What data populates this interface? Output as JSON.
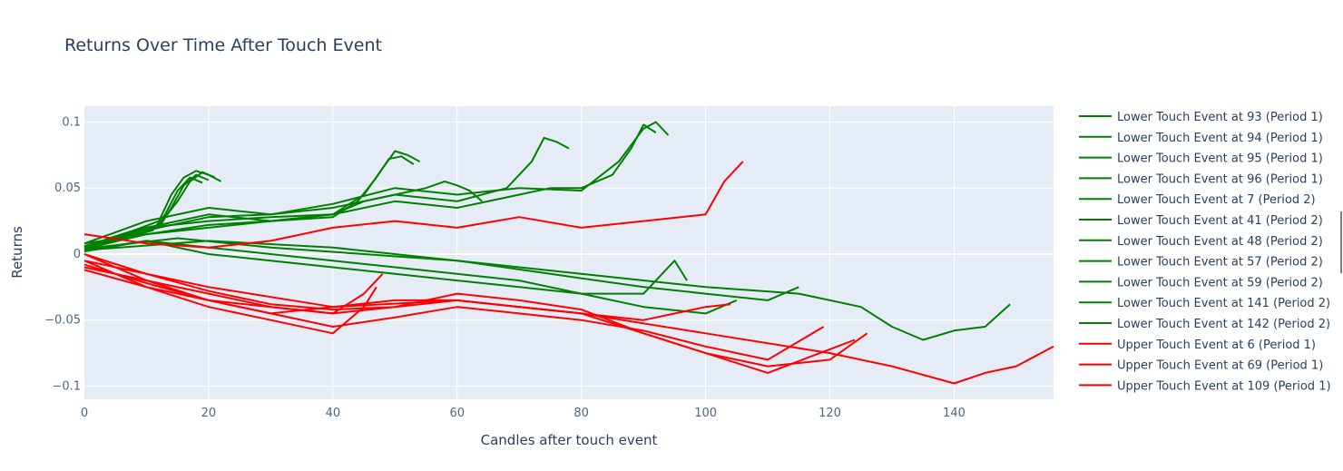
{
  "chart_data": {
    "type": "line",
    "title": "Returns Over Time After Touch Event",
    "xlabel": "Candles after touch event",
    "ylabel": "Returns",
    "xlim": [
      0,
      156
    ],
    "ylim": [
      -0.11,
      0.112
    ],
    "xticks": [
      0,
      20,
      40,
      60,
      80,
      100,
      120,
      140
    ],
    "yticks": [
      0.1,
      0.05,
      0,
      -0.05,
      -0.1
    ],
    "ytick_labels": [
      "0.1",
      "0.05",
      "0",
      "−0.05",
      "−0.1"
    ],
    "grid": true,
    "legend_position": "right",
    "colors": {
      "lower": "#008000",
      "upper": "#ff0000",
      "plot_bg": "#e5ecf6",
      "grid": "#ffffff"
    },
    "series": [
      {
        "name": "Lower Touch Event at 93 (Period 1)",
        "group": "lower",
        "x": [
          0,
          4,
          8,
          12,
          14,
          16,
          18,
          20,
          22
        ],
        "y": [
          0.005,
          0.012,
          0.018,
          0.025,
          0.045,
          0.058,
          0.063,
          0.06,
          0.055
        ]
      },
      {
        "name": "Lower Touch Event at 94 (Period 1)",
        "group": "lower",
        "x": [
          0,
          4,
          8,
          12,
          15,
          17,
          19,
          21
        ],
        "y": [
          0.004,
          0.01,
          0.015,
          0.022,
          0.04,
          0.055,
          0.062,
          0.058
        ]
      },
      {
        "name": "Lower Touch Event at 95 (Period 1)",
        "group": "lower",
        "x": [
          0,
          4,
          8,
          12,
          14,
          16,
          18,
          20
        ],
        "y": [
          0.006,
          0.011,
          0.016,
          0.02,
          0.035,
          0.052,
          0.06,
          0.056
        ]
      },
      {
        "name": "Lower Touch Event at 96 (Period 1)",
        "group": "lower",
        "x": [
          0,
          4,
          8,
          11,
          13,
          15,
          17,
          19
        ],
        "y": [
          0.003,
          0.009,
          0.014,
          0.018,
          0.03,
          0.048,
          0.058,
          0.054
        ]
      },
      {
        "name": "Lower Touch Event at 7 (Period 2)",
        "group": "lower",
        "x": [
          0,
          10,
          20,
          30,
          40,
          45,
          48,
          50,
          52,
          54
        ],
        "y": [
          0.002,
          0.02,
          0.025,
          0.028,
          0.03,
          0.045,
          0.065,
          0.078,
          0.075,
          0.07
        ]
      },
      {
        "name": "Lower Touch Event at 41 (Period 2)",
        "group": "lower",
        "x": [
          0,
          10,
          20,
          30,
          40,
          44,
          47,
          49,
          51,
          53
        ],
        "y": [
          0.004,
          0.015,
          0.022,
          0.025,
          0.028,
          0.04,
          0.058,
          0.072,
          0.074,
          0.068
        ]
      },
      {
        "name": "Lower Touch Event at 48 (Period 2)",
        "group": "lower",
        "x": [
          0,
          10,
          20,
          30,
          40,
          50,
          60,
          68,
          72,
          74,
          76,
          78
        ],
        "y": [
          0.006,
          0.018,
          0.028,
          0.03,
          0.035,
          0.045,
          0.04,
          0.05,
          0.07,
          0.088,
          0.085,
          0.08
        ]
      },
      {
        "name": "Lower Touch Event at 57 (Period 2)",
        "group": "lower",
        "x": [
          0,
          10,
          20,
          30,
          40,
          50,
          60,
          70,
          80,
          86,
          90,
          92,
          94
        ],
        "y": [
          0.008,
          0.025,
          0.035,
          0.03,
          0.038,
          0.05,
          0.045,
          0.05,
          0.048,
          0.07,
          0.095,
          0.1,
          0.09
        ]
      },
      {
        "name": "Lower Touch Event at 59 (Period 2)",
        "group": "lower",
        "x": [
          0,
          10,
          20,
          30,
          40,
          50,
          60,
          70,
          80,
          90,
          95,
          97
        ],
        "y": [
          0.002,
          0.01,
          0.005,
          0.0,
          -0.005,
          -0.01,
          -0.015,
          -0.02,
          -0.03,
          -0.03,
          -0.005,
          -0.02
        ]
      },
      {
        "name": "Lower Touch Event at 141 (Period 2)",
        "group": "lower",
        "x": [
          0,
          15,
          30,
          45,
          60,
          75,
          90,
          100,
          110,
          115
        ],
        "y": [
          0.004,
          0.012,
          0.005,
          0.0,
          -0.005,
          -0.015,
          -0.025,
          -0.03,
          -0.035,
          -0.025
        ]
      },
      {
        "name": "Lower Touch Event at 142 (Period 2)",
        "group": "lower",
        "x": [
          0,
          20,
          40,
          60,
          80,
          100,
          115,
          125,
          130,
          135,
          140,
          145,
          149
        ],
        "y": [
          0.003,
          0.01,
          0.005,
          -0.005,
          -0.015,
          -0.025,
          -0.03,
          -0.04,
          -0.055,
          -0.065,
          -0.058,
          -0.055,
          -0.038
        ]
      },
      {
        "name": "Upper Touch Event at 6 (Period 1)",
        "group": "upper",
        "x": [
          0,
          10,
          20,
          30,
          40,
          50,
          60,
          70,
          80,
          90,
          100,
          103,
          106
        ],
        "y": [
          0.015,
          0.008,
          0.005,
          0.01,
          0.02,
          0.025,
          0.02,
          0.028,
          0.02,
          0.025,
          0.03,
          0.055,
          0.07
        ]
      },
      {
        "name": "Upper Touch Event at 69 (Period 1)",
        "group": "upper",
        "x": [
          0,
          10,
          20,
          30,
          40,
          50,
          60,
          70,
          80,
          90,
          100,
          110,
          120,
          126
        ],
        "y": [
          -0.01,
          -0.02,
          -0.03,
          -0.04,
          -0.045,
          -0.04,
          -0.035,
          -0.04,
          -0.045,
          -0.06,
          -0.075,
          -0.085,
          -0.08,
          -0.06
        ]
      },
      {
        "name": "Upper Touch Event at 109 (Period 1)",
        "group": "upper",
        "x": [
          0,
          20,
          40,
          60,
          80,
          100,
          120,
          130,
          140,
          145,
          150,
          156
        ],
        "y": [
          -0.005,
          -0.025,
          -0.04,
          -0.035,
          -0.045,
          -0.06,
          -0.075,
          -0.085,
          -0.098,
          -0.09,
          -0.085,
          -0.07
        ]
      }
    ],
    "unlabeled_traces": [
      {
        "group": "lower",
        "x": [
          0,
          10,
          20,
          30,
          40,
          50,
          60,
          70,
          75,
          80,
          85,
          88,
          90,
          92
        ],
        "y": [
          0.008,
          0.015,
          0.02,
          0.025,
          0.03,
          0.04,
          0.035,
          0.045,
          0.05,
          0.05,
          0.06,
          0.08,
          0.098,
          0.092
        ]
      },
      {
        "group": "lower",
        "x": [
          0,
          10,
          20,
          30,
          40,
          45,
          50,
          55,
          58,
          60,
          62,
          64
        ],
        "y": [
          0.005,
          0.02,
          0.03,
          0.025,
          0.03,
          0.04,
          0.045,
          0.05,
          0.055,
          0.052,
          0.048,
          0.04
        ]
      },
      {
        "group": "lower",
        "x": [
          0,
          10,
          20,
          30,
          40,
          50,
          60,
          70,
          80,
          90,
          100,
          105
        ],
        "y": [
          0.003,
          0.01,
          0.0,
          -0.005,
          -0.01,
          -0.015,
          -0.02,
          -0.025,
          -0.03,
          -0.04,
          -0.045,
          -0.035
        ]
      },
      {
        "group": "upper",
        "x": [
          0,
          10,
          20,
          30,
          40,
          45,
          48
        ],
        "y": [
          0.0,
          -0.02,
          -0.035,
          -0.04,
          -0.045,
          -0.03,
          -0.015
        ]
      },
      {
        "group": "upper",
        "x": [
          0,
          10,
          20,
          30,
          40,
          45,
          47
        ],
        "y": [
          -0.005,
          -0.025,
          -0.04,
          -0.05,
          -0.06,
          -0.04,
          -0.025
        ]
      },
      {
        "group": "upper",
        "x": [
          0,
          10,
          20,
          30,
          40,
          50,
          60,
          70,
          80,
          90,
          100,
          110,
          119
        ],
        "y": [
          -0.008,
          -0.022,
          -0.035,
          -0.045,
          -0.055,
          -0.048,
          -0.04,
          -0.045,
          -0.05,
          -0.058,
          -0.07,
          -0.08,
          -0.055
        ]
      },
      {
        "group": "upper",
        "x": [
          0,
          10,
          20,
          30,
          40,
          50,
          60,
          70,
          80,
          90,
          100,
          110,
          124
        ],
        "y": [
          0.0,
          -0.015,
          -0.028,
          -0.038,
          -0.042,
          -0.04,
          -0.03,
          -0.035,
          -0.042,
          -0.06,
          -0.075,
          -0.09,
          -0.065
        ]
      },
      {
        "group": "upper",
        "x": [
          0,
          10,
          20,
          30,
          40,
          50,
          60,
          70,
          80,
          90,
          100,
          104
        ],
        "y": [
          -0.012,
          -0.025,
          -0.035,
          -0.045,
          -0.04,
          -0.035,
          -0.035,
          -0.04,
          -0.045,
          -0.05,
          -0.04,
          -0.038
        ]
      }
    ]
  }
}
